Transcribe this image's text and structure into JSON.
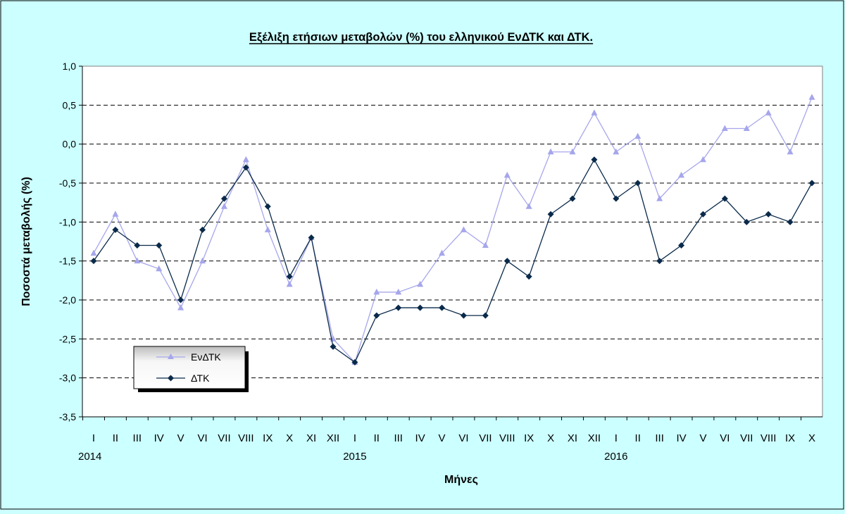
{
  "chart_data": {
    "type": "line",
    "title": "Εξέλιξη ετήσιων μεταβολών (%) του ελληνικού ΕνΔΤΚ και ΔΤΚ.",
    "xlabel": "Μήνες",
    "ylabel": "Ποσοστά μεταβολής (%)",
    "ylim": [
      -3.5,
      1.0
    ],
    "ytick_step": 0.5,
    "yticks": [
      "1,0",
      "0,5",
      "0,0",
      "-0,5",
      "-1,0",
      "-1,5",
      "-2,0",
      "-2,5",
      "-3,0",
      "-3,5"
    ],
    "categories": [
      "I",
      "II",
      "III",
      "IV",
      "V",
      "VI",
      "VII",
      "VIII",
      "IX",
      "X",
      "XI",
      "XII",
      "I",
      "II",
      "III",
      "IV",
      "V",
      "VI",
      "VII",
      "VIII",
      "IX",
      "X",
      "XI",
      "XII",
      "I",
      "II",
      "III",
      "IV",
      "V",
      "VI",
      "VII",
      "VIII",
      "IX",
      "X"
    ],
    "year_labels": [
      {
        "index": 0,
        "label": "2014"
      },
      {
        "index": 12,
        "label": "2015"
      },
      {
        "index": 24,
        "label": "2016"
      }
    ],
    "grid": true,
    "legend_position": "lower-left",
    "series": [
      {
        "name": "ΕνΔΤΚ",
        "color": "#a6a6ec",
        "marker": "triangle",
        "values": [
          -1.4,
          -0.9,
          -1.5,
          -1.6,
          -2.1,
          -1.5,
          -0.8,
          -0.2,
          -1.1,
          -1.8,
          -1.2,
          -2.5,
          -2.8,
          -1.9,
          -1.9,
          -1.8,
          -1.4,
          -1.1,
          -1.3,
          -0.4,
          -0.8,
          -0.1,
          -0.1,
          0.4,
          -0.1,
          0.1,
          -0.7,
          -0.4,
          -0.2,
          0.2,
          0.2,
          0.4,
          -0.1,
          0.6
        ]
      },
      {
        "name": "ΔΤΚ",
        "color": "#0a2a4a",
        "marker": "diamond",
        "values": [
          -1.5,
          -1.1,
          -1.3,
          -1.3,
          -2.0,
          -1.1,
          -0.7,
          -0.3,
          -0.8,
          -1.7,
          -1.2,
          -2.6,
          -2.8,
          -2.2,
          -2.1,
          -2.1,
          -2.1,
          -2.2,
          -2.2,
          -1.5,
          -1.7,
          -0.9,
          -0.7,
          -0.2,
          -0.7,
          -0.5,
          -1.5,
          -1.3,
          -0.9,
          -0.7,
          -1.0,
          -0.9,
          -1.0,
          -0.5
        ]
      }
    ]
  },
  "colors": {
    "background": "#ccffff",
    "plot_area": "#ffffff",
    "gridline": "#000000"
  }
}
